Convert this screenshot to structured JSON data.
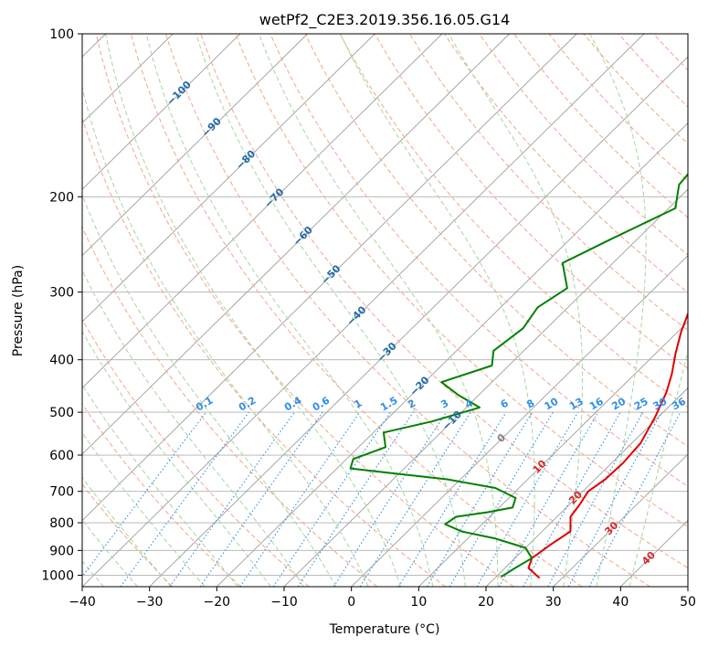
{
  "chart_data": {
    "type": "line",
    "title": "wetPf2_C2E3.2019.356.16.05.G14",
    "xlabel": "Temperature (°C)",
    "ylabel": "Pressure (hPa)",
    "xlim": [
      -40,
      50
    ],
    "ylim": [
      1050,
      100
    ],
    "y_scale": "log",
    "x_ticks": [
      -40,
      -30,
      -20,
      -10,
      0,
      10,
      20,
      30,
      40,
      50
    ],
    "y_ticks": [
      100,
      200,
      300,
      400,
      500,
      600,
      700,
      800,
      900,
      1000
    ],
    "grid": true,
    "colors": {
      "temperature": "#e00000",
      "dewpoint": "#008000",
      "dry_adiabat": "#f4a58a",
      "moist_adiabat": "#a6d6a0",
      "mixing_ratio": "#2f8fe8",
      "isotherm": "#9e9e9e",
      "isotherm_label": "#1f6aa8",
      "warm_isotherm_label": "#d62828",
      "zero_isotherm_label": "#808080"
    },
    "isotherm_labels": [
      {
        "value": -100,
        "p": 128
      },
      {
        "value": -90,
        "p": 148
      },
      {
        "value": -80,
        "p": 170
      },
      {
        "value": -70,
        "p": 200
      },
      {
        "value": -60,
        "p": 235
      },
      {
        "value": -50,
        "p": 277
      },
      {
        "value": -40,
        "p": 330
      },
      {
        "value": -30,
        "p": 385
      },
      {
        "value": -20,
        "p": 445
      },
      {
        "value": -10,
        "p": 515
      },
      {
        "value": 0,
        "p": 555
      },
      {
        "value": 10,
        "p": 627
      },
      {
        "value": 20,
        "p": 715
      },
      {
        "value": 30,
        "p": 815
      },
      {
        "value": 40,
        "p": 925
      }
    ],
    "mixing_ratio_labels": [
      "0.1",
      "0.2",
      "0.4",
      "0.6",
      "1",
      "1.5",
      "2",
      "3",
      "4",
      "6",
      "8",
      "10",
      "13",
      "16",
      "20",
      "25",
      "30",
      "36"
    ],
    "series": [
      {
        "key": "temperature",
        "points": [
          [
            26.5,
            1010
          ],
          [
            23.5,
            970
          ],
          [
            22.5,
            930
          ],
          [
            23.2,
            880
          ],
          [
            24.2,
            830
          ],
          [
            22.0,
            780
          ],
          [
            21.5,
            740
          ],
          [
            20.8,
            700
          ],
          [
            21.5,
            665
          ],
          [
            21.7,
            620
          ],
          [
            21.3,
            570
          ],
          [
            19.5,
            510
          ],
          [
            17.5,
            460
          ],
          [
            15.5,
            425
          ],
          [
            13.0,
            390
          ],
          [
            10.5,
            355
          ],
          [
            8.2,
            320
          ],
          [
            6.0,
            290
          ],
          [
            4.5,
            265
          ],
          [
            3.2,
            240
          ],
          [
            1.8,
            220
          ],
          [
            1.0,
            205
          ],
          [
            1.2,
            190
          ],
          [
            0.8,
            175
          ],
          [
            -0.3,
            160
          ],
          [
            -0.5,
            145
          ],
          [
            -0.2,
            130
          ],
          [
            0.8,
            120
          ],
          [
            2.0,
            112
          ],
          [
            3.2,
            100
          ]
        ]
      },
      {
        "key": "dewpoint",
        "points": [
          [
            20.8,
            1005
          ],
          [
            21.5,
            970
          ],
          [
            22.5,
            930
          ],
          [
            20.0,
            890
          ],
          [
            14.0,
            855
          ],
          [
            8.0,
            830
          ],
          [
            4.5,
            805
          ],
          [
            5.0,
            780
          ],
          [
            9.0,
            765
          ],
          [
            12.0,
            750
          ],
          [
            11.0,
            720
          ],
          [
            6.5,
            690
          ],
          [
            -2.0,
            665
          ],
          [
            -10.0,
            650
          ],
          [
            -18.0,
            635
          ],
          [
            -19.0,
            610
          ],
          [
            -16.0,
            580
          ],
          [
            -18.5,
            545
          ],
          [
            -13.0,
            520
          ],
          [
            -8.0,
            490
          ],
          [
            -13.0,
            465
          ],
          [
            -17.5,
            440
          ],
          [
            -12.5,
            410
          ],
          [
            -14.5,
            385
          ],
          [
            -13.5,
            350
          ],
          [
            -14.5,
            320
          ],
          [
            -13.0,
            295
          ],
          [
            -17.5,
            265
          ],
          [
            -14.0,
            240
          ],
          [
            -9.0,
            210
          ],
          [
            -12.0,
            190
          ],
          [
            -12.5,
            175
          ],
          [
            -7.0,
            165
          ],
          [
            -5.5,
            145
          ],
          [
            -5.5,
            125
          ],
          [
            -6.0,
            110
          ],
          [
            -4.0,
            100
          ]
        ]
      }
    ]
  }
}
